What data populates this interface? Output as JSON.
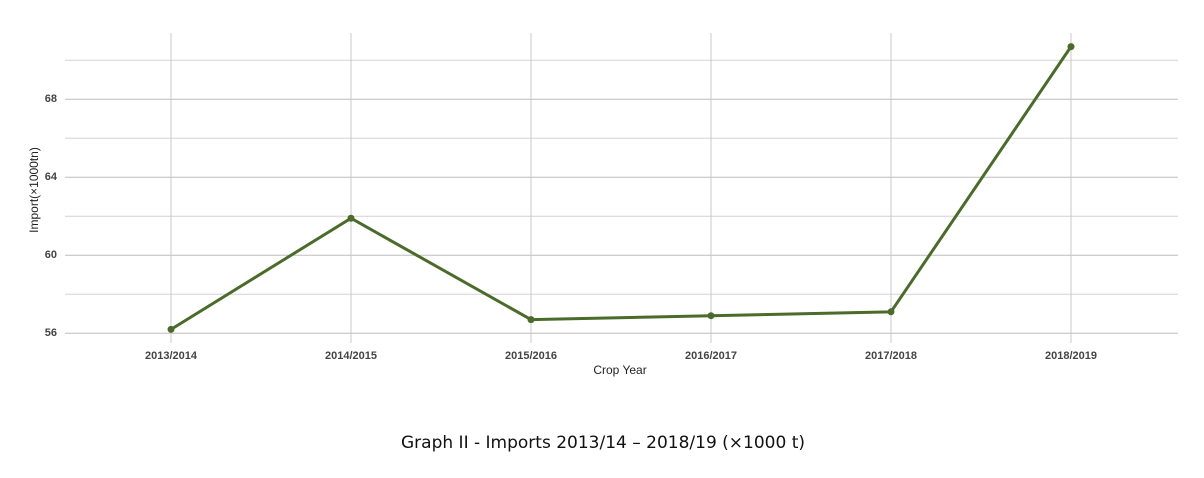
{
  "chart_data": {
    "type": "line",
    "caption": "Graph II - Imports 2013/14 – 2018/19 (×1000 t)",
    "x_label": "Crop Year",
    "y_label": "Import(×1000tn)",
    "categories": [
      "2013/2014",
      "2014/2015",
      "2015/2016",
      "2016/2017",
      "2017/2018",
      "2018/2019"
    ],
    "series": [
      {
        "color": "#4a6b2a",
        "values": [
          56.2,
          61.9,
          56.7,
          56.9,
          57.1,
          70.7
        ]
      }
    ],
    "ylim": [
      55.5,
      71.4
    ],
    "yticks": [
      56,
      60,
      64,
      68
    ],
    "minor_yticks": [
      58,
      62,
      66,
      70
    ],
    "grid": true
  }
}
